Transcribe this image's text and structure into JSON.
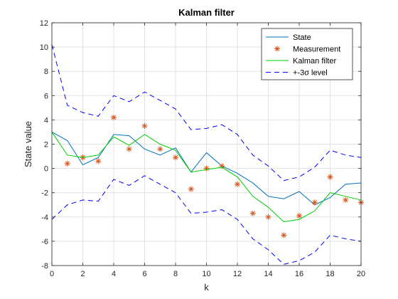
{
  "chart_data": {
    "type": "line",
    "title": "Kalman filter",
    "xlabel": "k",
    "ylabel": "State value",
    "xlim": [
      0,
      20
    ],
    "ylim": [
      -8,
      12
    ],
    "xticks": [
      "0",
      "2",
      "4",
      "6",
      "8",
      "10",
      "12",
      "14",
      "16",
      "18",
      "20"
    ],
    "yticks": [
      "-8",
      "-6",
      "-4",
      "-2",
      "0",
      "2",
      "4",
      "6",
      "8",
      "10",
      "12"
    ],
    "grid": true,
    "legend_position": "top-right",
    "x": [
      0,
      1,
      2,
      3,
      4,
      5,
      6,
      7,
      8,
      9,
      10,
      11,
      12,
      13,
      14,
      15,
      16,
      17,
      18,
      19,
      20
    ],
    "series": [
      {
        "name": "State",
        "style": "line",
        "color": "#0072BD",
        "values": [
          3.0,
          2.3,
          0.3,
          0.9,
          2.8,
          2.7,
          1.6,
          1.1,
          1.7,
          -0.3,
          1.3,
          0.2,
          -0.4,
          -1.2,
          -2.3,
          -2.5,
          -1.9,
          -3.0,
          -2.4,
          -1.3,
          -1.2
        ]
      },
      {
        "name": "Measurement",
        "style": "marker",
        "color": "#D95319",
        "x": [
          1,
          2,
          3,
          4,
          5,
          6,
          7,
          8,
          9,
          10,
          11,
          12,
          13,
          14,
          15,
          16,
          17,
          18,
          19,
          20
        ],
        "values": [
          0.4,
          0.9,
          0.6,
          4.2,
          1.6,
          3.5,
          1.6,
          0.9,
          -1.7,
          0.0,
          0.2,
          -1.3,
          -3.7,
          -4.0,
          -5.5,
          -3.9,
          -2.8,
          -0.7,
          -2.6,
          -2.8
        ]
      },
      {
        "name": "Kalman filter",
        "style": "line",
        "color": "#00CC00",
        "values": [
          3.0,
          1.1,
          0.9,
          1.1,
          2.6,
          1.9,
          2.8,
          2.0,
          1.5,
          -0.3,
          -0.1,
          0.1,
          -0.7,
          -2.3,
          -3.2,
          -4.4,
          -4.2,
          -3.5,
          -2.0,
          -2.3,
          -2.6
        ]
      },
      {
        "name": "+-3σ level",
        "style": "dashed",
        "color": "#0000FF",
        "upper": [
          10.2,
          5.2,
          4.6,
          4.3,
          6.0,
          5.5,
          6.3,
          5.6,
          4.9,
          3.2,
          3.3,
          3.6,
          2.8,
          1.1,
          0.2,
          -1.0,
          -0.7,
          0.1,
          1.5,
          1.1,
          0.9
        ],
        "lower": [
          -4.2,
          -3.0,
          -2.6,
          -2.7,
          -0.9,
          -1.4,
          -0.6,
          -1.3,
          -2.0,
          -3.7,
          -3.6,
          -3.4,
          -4.2,
          -5.8,
          -6.7,
          -7.9,
          -7.6,
          -6.9,
          -5.5,
          -5.8,
          -6.0
        ]
      }
    ]
  }
}
